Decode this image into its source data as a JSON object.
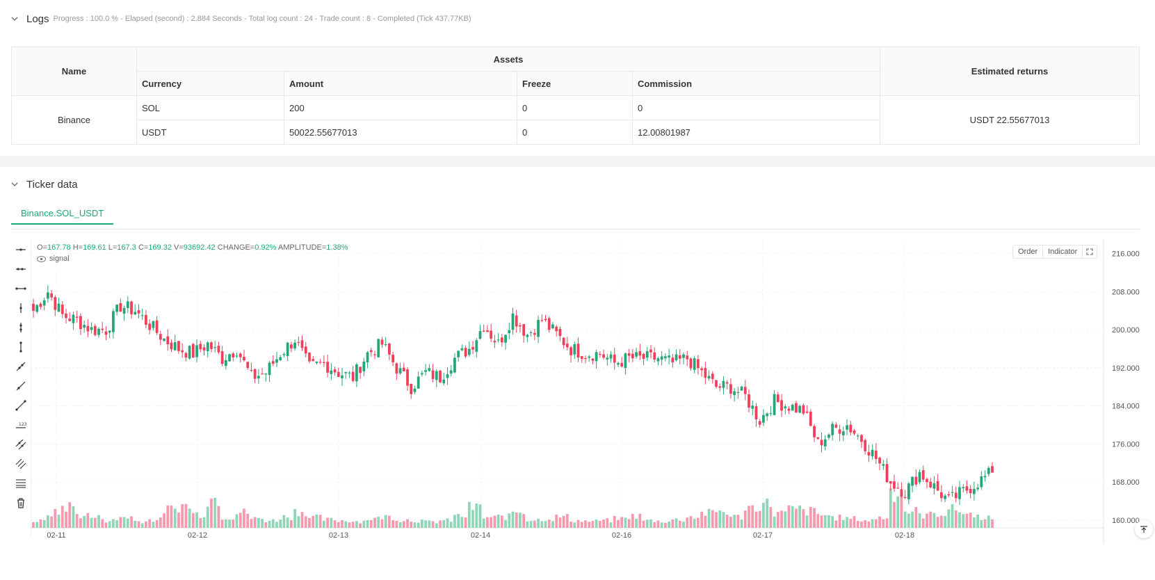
{
  "logs": {
    "title": "Logs",
    "summary": "Progress : 100.0 % - Elapsed (second) : 2.884  Seconds - Total log count : 24 - Trade count : 8 - Completed (Tick 437.77KB)"
  },
  "assets_table": {
    "headers": {
      "name": "Name",
      "assets": "Assets",
      "estimated_returns": "Estimated returns",
      "currency": "Currency",
      "amount": "Amount",
      "freeze": "Freeze",
      "commission": "Commission"
    },
    "exchange": "Binance",
    "rows": [
      {
        "currency": "SOL",
        "amount": "200",
        "freeze": "0",
        "commission": "0"
      },
      {
        "currency": "USDT",
        "amount": "50022.55677013",
        "freeze": "0",
        "commission": "12.00801987"
      }
    ],
    "estimated_returns": "USDT 22.55677013"
  },
  "ticker": {
    "title": "Ticker data",
    "tab": "Binance.SOL_USDT",
    "ohlc": {
      "o_label": "O=",
      "o": "167.78",
      "h_label": "H=",
      "h": "169.61",
      "l_label": "L=",
      "l": "167.3",
      "c_label": "C=",
      "c": "169.32",
      "v_label": "V=",
      "v": "93692.42",
      "change_label": "CHANGE=",
      "change": "0.92%",
      "amp_label": "AMPLITUDE=",
      "amp": "1.38%"
    },
    "signal_label": "signal",
    "controls": {
      "order": "Order",
      "indicator": "Indicator"
    }
  },
  "colors": {
    "up": "#26a676",
    "down": "#f03f5a",
    "up_vol": "#8fd5b8",
    "down_vol": "#f59aac",
    "accent": "#1aa979"
  },
  "icons": [
    "chevron-down-icon",
    "horizontal-line-icon",
    "horizontal-ray-icon",
    "segment-icon",
    "vertical-line-icon",
    "trend-line-icon",
    "parallel-channel-icon",
    "fib-icon",
    "text-icon",
    "trash-icon",
    "eye-icon",
    "fullscreen-icon",
    "scroll-to-latest-icon"
  ],
  "chart_data": {
    "type": "candlestick",
    "y_ticks": [
      160,
      168,
      176,
      184,
      192,
      200,
      208,
      216
    ],
    "y_tick_labels": [
      "160.000",
      "168.000",
      "176.000",
      "184.000",
      "192.000",
      "200.000",
      "208.000",
      "216.000"
    ],
    "x_tick_labels": [
      "02-11",
      "02-12",
      "02-13",
      "02-14",
      "02-16",
      "02-17",
      "02-18"
    ],
    "ylim": [
      156.5,
      219
    ],
    "anchors": [
      204,
      208,
      203,
      202,
      200,
      200,
      205,
      204,
      201,
      198,
      196,
      195,
      197,
      194,
      196,
      190,
      191,
      195,
      198,
      192,
      193,
      191,
      190,
      195,
      197,
      192,
      188,
      191,
      190,
      194,
      196,
      201,
      197,
      203,
      199,
      202,
      199,
      196,
      195,
      195,
      193,
      194,
      194,
      194,
      193,
      194,
      191,
      188,
      188,
      186,
      181,
      185,
      184,
      183,
      176,
      179,
      180,
      177,
      173,
      168,
      166,
      170,
      167,
      164,
      166,
      168,
      170
    ],
    "volumes": [
      0.18,
      0.4,
      0.58,
      0.35,
      0.28,
      0.2,
      0.3,
      0.18,
      0.22,
      0.5,
      0.6,
      0.38,
      0.8,
      0.3,
      0.42,
      0.25,
      0.2,
      0.3,
      0.45,
      0.28,
      0.22,
      0.2,
      0.18,
      0.25,
      0.3,
      0.22,
      0.2,
      0.16,
      0.2,
      0.32,
      0.55,
      0.28,
      0.3,
      0.45,
      0.22,
      0.25,
      0.3,
      0.2,
      0.18,
      0.2,
      0.25,
      0.32,
      0.2,
      0.18,
      0.22,
      0.3,
      0.4,
      0.45,
      0.3,
      0.55,
      0.65,
      0.4,
      0.5,
      0.45,
      0.35,
      0.28,
      0.25,
      0.2,
      0.28,
      1.0,
      0.45,
      0.35,
      0.4,
      0.5,
      0.38,
      0.3,
      0.2
    ],
    "volume_spike": 1.0,
    "candles_per_segment": 4
  }
}
